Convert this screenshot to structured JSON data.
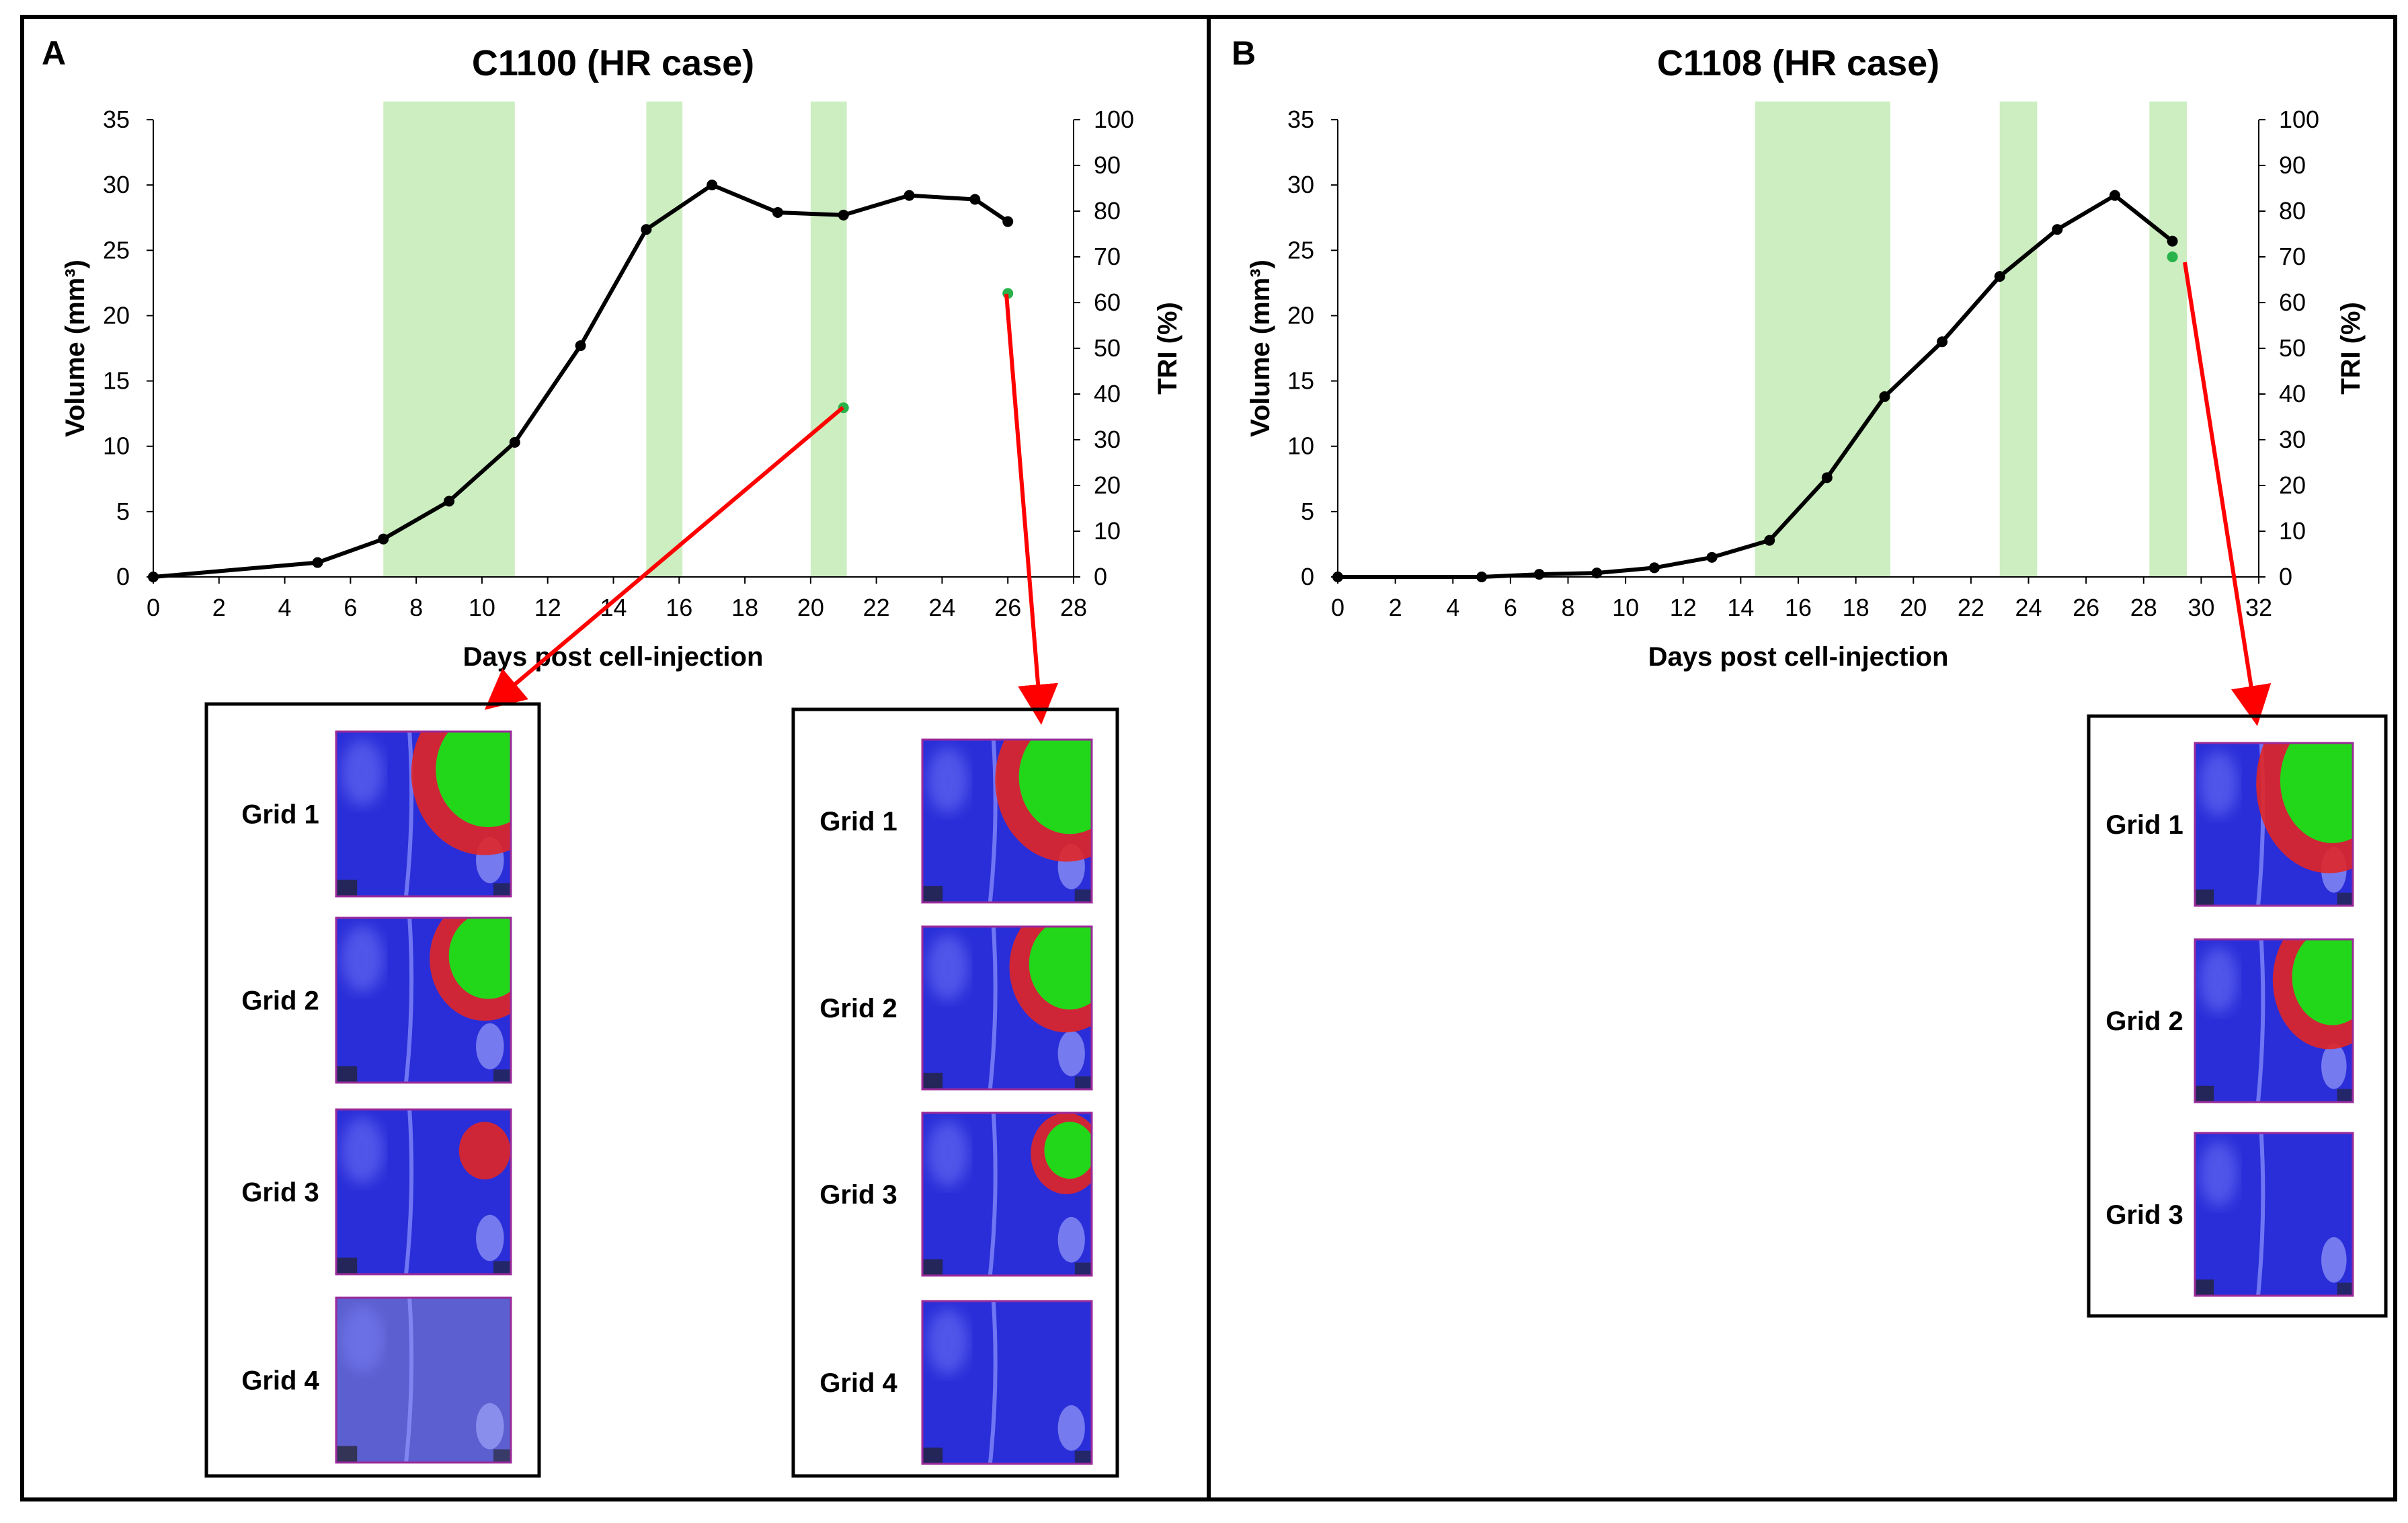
{
  "chart_data": [
    {
      "type": "line",
      "panel_label": "A",
      "title": "C1100 (HR case)",
      "xlabel": "Days post cell-injection",
      "ylabel": "Volume (mm³)",
      "y2label": "TRI (%)",
      "xlim": [
        0,
        28
      ],
      "ylim": [
        0,
        35
      ],
      "y2lim": [
        0,
        100
      ],
      "xticks": [
        0,
        2,
        4,
        6,
        8,
        10,
        12,
        14,
        16,
        18,
        20,
        22,
        24,
        26,
        28
      ],
      "yticks": [
        0,
        5,
        10,
        15,
        20,
        25,
        30,
        35
      ],
      "y2ticks": [
        0,
        10,
        20,
        30,
        40,
        50,
        60,
        70,
        80,
        90,
        100
      ],
      "shaded_ranges": [
        [
          7,
          11
        ],
        [
          15,
          16.1
        ],
        [
          20,
          21.1
        ]
      ],
      "series": [
        {
          "name": "Volume",
          "axis": "left",
          "x": [
            0,
            5,
            7,
            9,
            11,
            13,
            15,
            17,
            19,
            21,
            23,
            25,
            26
          ],
          "values": [
            0,
            1.1,
            2.9,
            5.8,
            10.3,
            17.7,
            26.6,
            30.0,
            27.9,
            27.7,
            29.2,
            28.9,
            27.2
          ]
        },
        {
          "name": "TRI",
          "axis": "right",
          "x": [
            21,
            26
          ],
          "values": [
            37,
            62
          ]
        }
      ],
      "grid_groups": [
        {
          "from_day": 21,
          "grids": [
            {
              "label": "Grid 1",
              "scan": "A1"
            },
            {
              "label": "Grid 2",
              "scan": "A2"
            },
            {
              "label": "Grid 3",
              "scan": "A3"
            },
            {
              "label": "Grid 4",
              "scan": "A4"
            }
          ]
        },
        {
          "from_day": 26,
          "grids": [
            {
              "label": "Grid 1",
              "scan": "B1"
            },
            {
              "label": "Grid 2",
              "scan": "B2"
            },
            {
              "label": "Grid 3",
              "scan": "B3"
            },
            {
              "label": "Grid 4",
              "scan": "B4"
            }
          ]
        }
      ]
    },
    {
      "type": "line",
      "panel_label": "B",
      "title": "C1108 (HR case)",
      "xlabel": "Days post cell-injection",
      "ylabel": "Volume (mm³)",
      "y2label": "TRI (%)",
      "xlim": [
        0,
        32
      ],
      "ylim": [
        0,
        35
      ],
      "y2lim": [
        0,
        100
      ],
      "xticks": [
        0,
        2,
        4,
        6,
        8,
        10,
        12,
        14,
        16,
        18,
        20,
        22,
        24,
        26,
        28,
        30,
        32
      ],
      "yticks": [
        0,
        5,
        10,
        15,
        20,
        25,
        30,
        35
      ],
      "y2ticks": [
        0,
        10,
        20,
        30,
        40,
        50,
        60,
        70,
        80,
        90,
        100
      ],
      "shaded_ranges": [
        [
          14.5,
          19.2
        ],
        [
          23,
          24.3
        ],
        [
          28.2,
          29.5
        ]
      ],
      "series": [
        {
          "name": "Volume",
          "axis": "left",
          "x": [
            0,
            5,
            7,
            9,
            11,
            13,
            15,
            17,
            19,
            21,
            23,
            25,
            27,
            29
          ],
          "values": [
            0,
            0,
            0.2,
            0.3,
            0.7,
            1.5,
            2.8,
            7.6,
            13.8,
            18.0,
            23.0,
            26.6,
            29.2,
            25.7
          ]
        },
        {
          "name": "TRI",
          "axis": "right",
          "x": [
            29
          ],
          "values": [
            70
          ]
        }
      ],
      "grid_groups": [
        {
          "from_day": 29,
          "grids": [
            {
              "label": "Grid 1",
              "scan": "C1"
            },
            {
              "label": "Grid 2",
              "scan": "C2"
            },
            {
              "label": "Grid 3",
              "scan": "C3"
            }
          ]
        }
      ]
    }
  ],
  "colors": {
    "shade": "#cdeec1",
    "volume_line": "#000000",
    "tri_marker": "#27b34a",
    "arrow": "#ff0000",
    "grid_background": "#2a2ed8",
    "grid_high": "#18e018",
    "grid_mid": "#e12626",
    "grid_frame": "#9a2a9a"
  }
}
